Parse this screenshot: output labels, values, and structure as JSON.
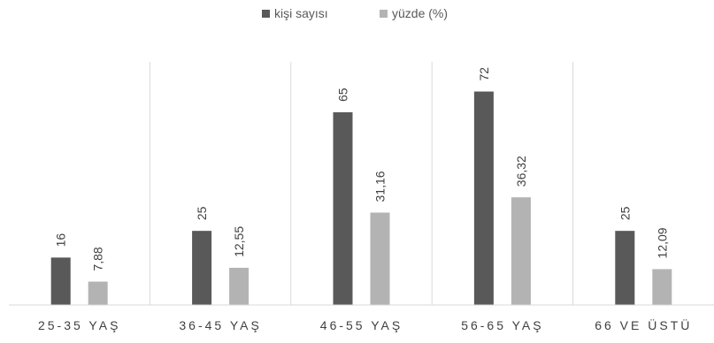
{
  "chart_data": {
    "type": "bar",
    "title": "",
    "xlabel": "",
    "ylabel": "",
    "categories": [
      "25-35 YAŞ",
      "36-45 YAŞ",
      "46-55 YAŞ",
      "56-65 YAŞ",
      "66 VE ÜSTÜ"
    ],
    "series": [
      {
        "name": "kişi sayısı",
        "color": "#595959",
        "values": [
          16,
          25,
          65,
          72,
          25
        ],
        "labels": [
          "16",
          "25",
          "65",
          "72",
          "25"
        ]
      },
      {
        "name": "yüzde (%)",
        "color": "#b3b3b3",
        "values": [
          7.88,
          12.55,
          31.16,
          36.32,
          12.09
        ],
        "labels": [
          "7,88",
          "12,55",
          "31,16",
          "36,32",
          "12,09"
        ]
      }
    ],
    "ylim": [
      0,
      82
    ],
    "legend_position": "top",
    "gridlines": "vertical-category-separators",
    "axis_color": "#d9d9d9"
  }
}
